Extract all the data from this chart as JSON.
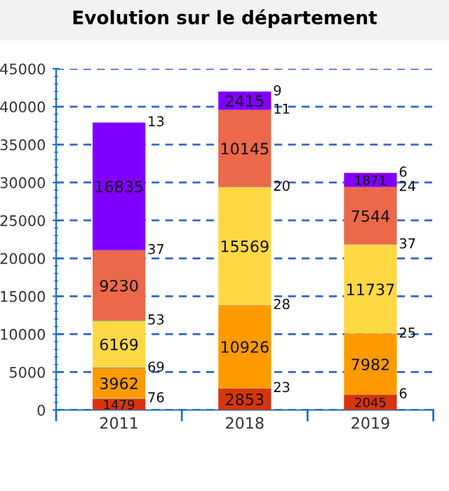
{
  "chart_data": {
    "type": "bar",
    "title": "Evolution sur le département",
    "categories": [
      "2011",
      "2018",
      "2019"
    ],
    "stacked": true,
    "data_labels": true,
    "grid": "y",
    "ylim": [
      0,
      45000
    ],
    "yticks": [
      0,
      5000,
      10000,
      15000,
      20000,
      25000,
      30000,
      35000,
      40000,
      45000
    ],
    "series": [
      {
        "color": "#d9340c",
        "values": [
          1479,
          2853,
          2045
        ]
      },
      {
        "color": "#6aa84f",
        "values": [
          76,
          23,
          6
        ]
      },
      {
        "color": "#ff9a00",
        "values": [
          3962,
          10926,
          7982
        ]
      },
      {
        "color": "#3d85c6",
        "values": [
          69,
          28,
          25
        ]
      },
      {
        "color": "#ffd944",
        "values": [
          6169,
          15569,
          11737
        ]
      },
      {
        "color": "#2e7d32",
        "values": [
          53,
          20,
          37
        ]
      },
      {
        "color": "#eb684b",
        "values": [
          9230,
          10145,
          7544
        ]
      },
      {
        "color": "#c2504a",
        "values": [
          37,
          11,
          24
        ]
      },
      {
        "color": "#8000ff",
        "values": [
          16835,
          2415,
          1871
        ]
      },
      {
        "color": "#f08080",
        "values": [
          13,
          9,
          6
        ]
      }
    ]
  }
}
